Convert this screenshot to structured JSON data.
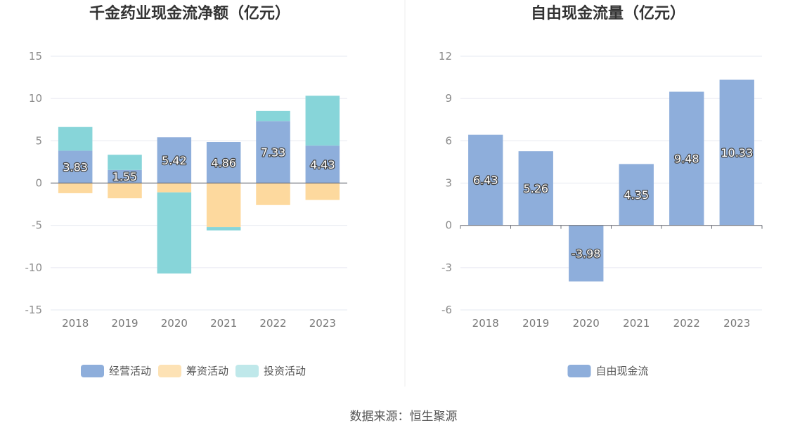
{
  "chart_data": [
    {
      "type": "bar",
      "stacked": true,
      "title": "千金药业现金流净额（亿元）",
      "categories": [
        "2018",
        "2019",
        "2020",
        "2021",
        "2022",
        "2023"
      ],
      "yticks": [
        "15",
        "10",
        "5",
        "0",
        "-5",
        "-10",
        "-15"
      ],
      "ylim": [
        -15,
        15
      ],
      "series": [
        {
          "name": "经营活动",
          "color": "#8eaedb",
          "values": [
            3.83,
            1.55,
            5.42,
            4.86,
            7.33,
            4.43
          ],
          "labels": [
            "3.83",
            "1.55",
            "5.42",
            "4.86",
            "7.33",
            "4.43"
          ]
        },
        {
          "name": "筹资活动",
          "color": "#fdd99e",
          "values": [
            -1.2,
            -1.8,
            -1.1,
            -5.2,
            -2.6,
            -2.0
          ]
        },
        {
          "name": "投资活动",
          "color": "#87d5d9",
          "values": [
            2.8,
            1.8,
            -9.6,
            -0.4,
            1.2,
            5.9
          ]
        }
      ],
      "legend": [
        {
          "name": "经营活动",
          "color": "#8eaedb"
        },
        {
          "name": "筹资活动",
          "color": "#fde2b5"
        },
        {
          "name": "投资活动",
          "color": "#bfe8ea"
        }
      ]
    },
    {
      "type": "bar",
      "title": "自由现金流量（亿元）",
      "categories": [
        "2018",
        "2019",
        "2020",
        "2021",
        "2022",
        "2023"
      ],
      "yticks": [
        "12",
        "9",
        "6",
        "3",
        "0",
        "-3",
        "-6"
      ],
      "ylim": [
        -6,
        12
      ],
      "series": [
        {
          "name": "自由现金流",
          "color": "#8eaedb",
          "values": [
            6.43,
            5.26,
            -3.98,
            4.35,
            9.48,
            10.33
          ],
          "labels": [
            "6.43",
            "5.26",
            "-3.98",
            "4.35",
            "9.48",
            "10.33"
          ]
        }
      ],
      "legend": [
        {
          "name": "自由现金流",
          "color": "#8eaedb"
        }
      ]
    }
  ],
  "footer": {
    "source": "数据来源：恒生聚源"
  }
}
